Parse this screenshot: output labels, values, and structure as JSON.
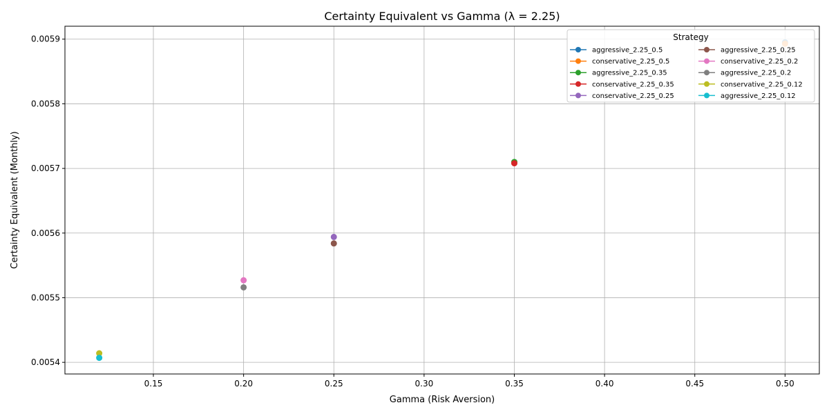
{
  "chart_data": {
    "type": "scatter",
    "title": "Certainty Equivalent vs Gamma (λ = 2.25)",
    "xlabel": "Gamma (Risk Aversion)",
    "ylabel": "Certainty Equivalent (Monthly)",
    "xlim": [
      0.101,
      0.519
    ],
    "ylim": [
      0.005382,
      0.00592
    ],
    "xticks": [
      0.15,
      0.2,
      0.25,
      0.3,
      0.35,
      0.4,
      0.45,
      0.5
    ],
    "xtick_labels": [
      "0.15",
      "0.20",
      "0.25",
      "0.30",
      "0.35",
      "0.40",
      "0.45",
      "0.50"
    ],
    "yticks": [
      0.0054,
      0.0055,
      0.0056,
      0.0057,
      0.0058,
      0.0059
    ],
    "ytick_labels": [
      "0.0054",
      "0.0055",
      "0.0056",
      "0.0057",
      "0.0058",
      "0.0059"
    ],
    "grid": true,
    "legend": {
      "title": "Strategy",
      "placement": "top-right",
      "columns": 2
    },
    "series": [
      {
        "name": "aggressive_2.25_0.5",
        "color": "#1f77b4",
        "x": [
          0.5
        ],
        "y": [
          0.005895
        ]
      },
      {
        "name": "conservative_2.25_0.5",
        "color": "#ff7f0e",
        "x": [
          0.5
        ],
        "y": [
          0.005893
        ]
      },
      {
        "name": "aggressive_2.25_0.35",
        "color": "#2ca02c",
        "x": [
          0.35
        ],
        "y": [
          0.00571
        ]
      },
      {
        "name": "conservative_2.25_0.35",
        "color": "#d62728",
        "x": [
          0.35
        ],
        "y": [
          0.005708
        ]
      },
      {
        "name": "conservative_2.25_0.25",
        "color": "#9467bd",
        "x": [
          0.25
        ],
        "y": [
          0.005594
        ]
      },
      {
        "name": "aggressive_2.25_0.25",
        "color": "#8c564b",
        "x": [
          0.25
        ],
        "y": [
          0.005584
        ]
      },
      {
        "name": "conservative_2.25_0.2",
        "color": "#e377c2",
        "x": [
          0.2
        ],
        "y": [
          0.005527
        ]
      },
      {
        "name": "aggressive_2.25_0.2",
        "color": "#7f7f7f",
        "x": [
          0.2
        ],
        "y": [
          0.005516
        ]
      },
      {
        "name": "conservative_2.25_0.12",
        "color": "#bcbd22",
        "x": [
          0.12
        ],
        "y": [
          0.005414
        ]
      },
      {
        "name": "aggressive_2.25_0.12",
        "color": "#17becf",
        "x": [
          0.12
        ],
        "y": [
          0.005407
        ]
      }
    ]
  }
}
